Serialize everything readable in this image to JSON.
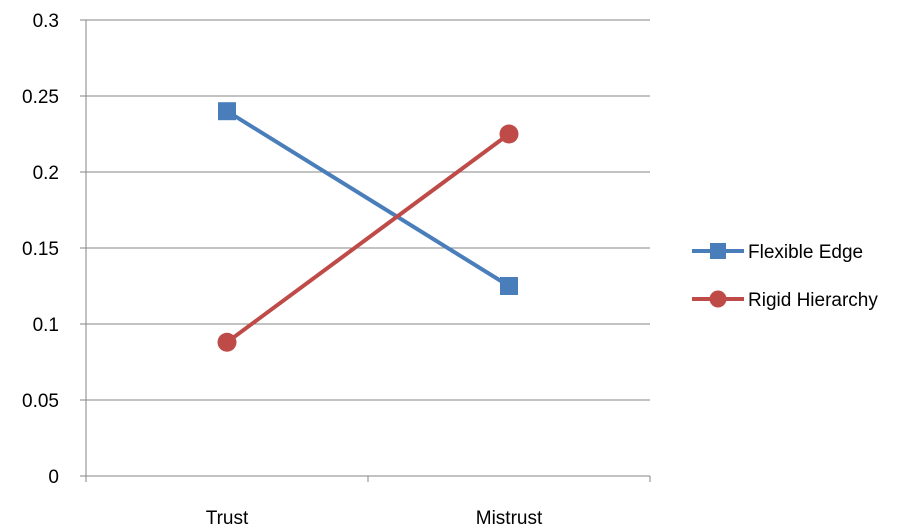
{
  "chart_data": {
    "type": "line",
    "title": "",
    "xlabel": "",
    "ylabel": "",
    "categories": [
      "Trust",
      "Mistrust"
    ],
    "ylim": [
      0,
      0.3
    ],
    "yticks": [
      0,
      0.05,
      0.1,
      0.15,
      0.2,
      0.25,
      0.3
    ],
    "ytick_labels": [
      "0",
      "0.05",
      "0.1",
      "0.15",
      "0.2",
      "0.25",
      "0.3"
    ],
    "grid": true,
    "legend_position": "right",
    "series": [
      {
        "name": "Flexible Edge",
        "values": [
          0.24,
          0.125
        ],
        "color": "#4a7ebb",
        "marker": "square"
      },
      {
        "name": "Rigid Hierarchy",
        "values": [
          0.088,
          0.225
        ],
        "color": "#be4b48",
        "marker": "circle"
      }
    ]
  }
}
